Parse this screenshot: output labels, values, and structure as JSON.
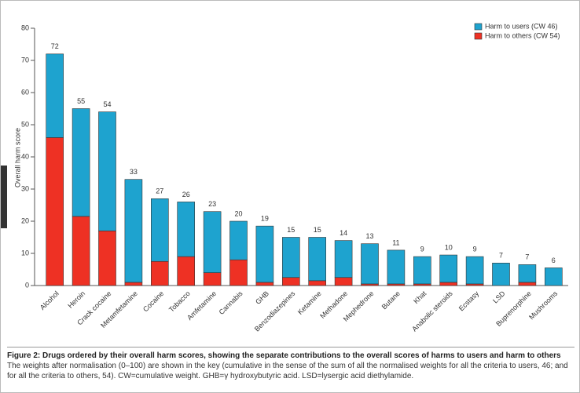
{
  "chart_data": {
    "type": "stacked_bar",
    "ylabel": "Overall harm score",
    "categories": [
      "Alcohol",
      "Heroin",
      "Crack cocaine",
      "Metamfetamine",
      "Cocaine",
      "Tobacco",
      "Amfetamine",
      "Cannabis",
      "GHB",
      "Benzodiazepines",
      "Ketamine",
      "Methadone",
      "Mephedrone",
      "Butane",
      "Khat",
      "Anabolic steroids",
      "Ecstasy",
      "LSD",
      "Buprenorphine",
      "Mushrooms"
    ],
    "series": [
      {
        "name": "Harm to others (CW 54)",
        "color": "#ee3124",
        "values": [
          46,
          21.5,
          17,
          1,
          7.5,
          9,
          4,
          8,
          1,
          2.5,
          1.5,
          2.5,
          0.5,
          0.5,
          0.5,
          1,
          0.5,
          0,
          1,
          0
        ]
      },
      {
        "name": "Harm to users (CW 46)",
        "color": "#1ea3cf",
        "values": [
          26,
          33.5,
          37,
          32,
          19.5,
          17,
          19,
          12,
          17.5,
          12.5,
          13.5,
          11.5,
          12.5,
          10.5,
          8.5,
          8.5,
          8.5,
          7,
          5.5,
          5.5
        ]
      }
    ],
    "totals": [
      72,
      55,
      54,
      33,
      27,
      26,
      23,
      20,
      19,
      15,
      15,
      14,
      13,
      11,
      9,
      10,
      9,
      7,
      7,
      6
    ],
    "ylim": [
      0,
      80
    ],
    "yticks": [
      0,
      10,
      20,
      30,
      40,
      50,
      60,
      70,
      80
    ],
    "grid": false,
    "legend": "top-right",
    "caption_title": "Figure 2: Drugs ordered by their overall harm scores, showing the separate contributions to the overall scores of harms to users and harm to others",
    "caption_text": "The weights after normalisation (0–100) are shown in the key (cumulative in the sense of the sum of all the normalised weights for all the criteria to users, 46; and for all the criteria to others, 54). CW=cumulative weight. GHB=γ hydroxybutyric acid. LSD=lysergic acid diethylamide."
  }
}
